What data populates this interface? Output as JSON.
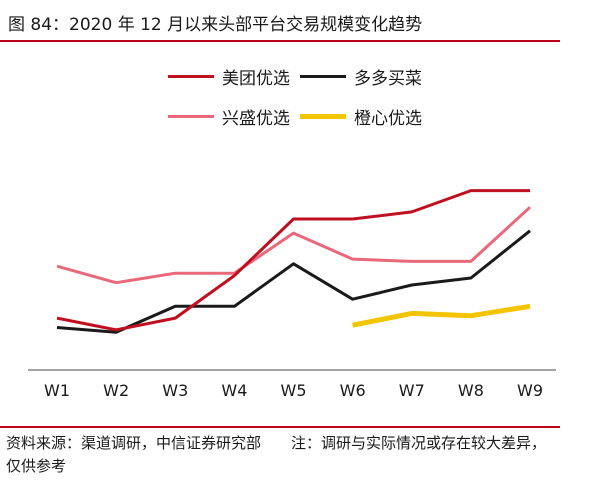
{
  "title": "图 84：2020 年 12 月以来头部平台交易规模变化趋势",
  "source": "资料来源：渠道调研，中信证券研究部　　注：调研与实际情况或存在较大差异，仅供参考",
  "chart_data": {
    "type": "line",
    "title": "",
    "xlabel": "",
    "ylabel": "",
    "categories": [
      "W1",
      "W2",
      "W3",
      "W4",
      "W5",
      "W6",
      "W7",
      "W8",
      "W9"
    ],
    "ylim": [
      0,
      100
    ],
    "y_axis_visible": false,
    "grid": false,
    "legend_position": "top",
    "series": [
      {
        "name": "美团优选",
        "color": "#c0101f",
        "values": [
          22,
          17,
          22,
          40,
          64,
          64,
          67,
          76,
          76
        ]
      },
      {
        "name": "多多买菜",
        "color": "#1a1a1a",
        "values": [
          18,
          16,
          27,
          27,
          45,
          30,
          36,
          39,
          59
        ]
      },
      {
        "name": "兴盛优选",
        "color": "#e9697a",
        "values": [
          44,
          37,
          41,
          41,
          58,
          47,
          46,
          46,
          69
        ]
      },
      {
        "name": "橙心优选",
        "color": "#f2c500",
        "values": [
          null,
          null,
          null,
          null,
          null,
          19,
          24,
          23,
          27
        ]
      }
    ]
  }
}
